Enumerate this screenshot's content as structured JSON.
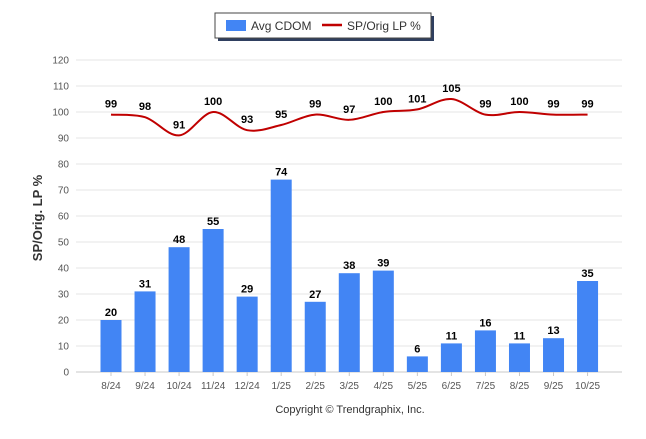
{
  "chart_data": {
    "type": "bar",
    "title": "",
    "xlabel": "",
    "ylabel": "SP/Orig. LP %",
    "ylim": [
      0,
      120
    ],
    "yticks": [
      0,
      10,
      20,
      30,
      40,
      50,
      60,
      70,
      80,
      90,
      100,
      110,
      120
    ],
    "grid": true,
    "legend_position": "top-center",
    "categories": [
      "8/24",
      "9/24",
      "10/24",
      "11/24",
      "12/24",
      "1/25",
      "2/25",
      "3/25",
      "4/25",
      "5/25",
      "6/25",
      "7/25",
      "8/25",
      "9/25",
      "10/25"
    ],
    "series": [
      {
        "name": "Avg CDOM",
        "type": "bar",
        "color": "#4285f4",
        "values": [
          20,
          31,
          48,
          55,
          29,
          74,
          27,
          38,
          39,
          6,
          11,
          16,
          11,
          13,
          35
        ]
      },
      {
        "name": "SP/Orig LP %",
        "type": "line",
        "color": "#c00000",
        "values": [
          99,
          98,
          91,
          100,
          93,
          95,
          99,
          97,
          100,
          101,
          105,
          99,
          100,
          99,
          99
        ]
      }
    ]
  },
  "footer": {
    "copyright": "Copyright © Trendgraphix, Inc."
  }
}
